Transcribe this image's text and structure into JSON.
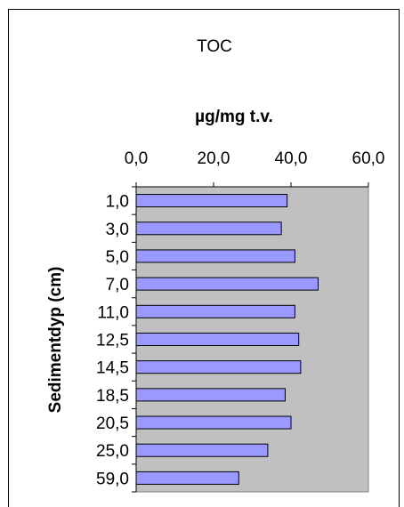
{
  "chart_data": {
    "type": "bar",
    "orientation": "horizontal",
    "title": "TOC",
    "xlabel": "µg/mg t.v.",
    "ylabel": "Sedimentdyp (cm)",
    "xlim": [
      0,
      60
    ],
    "x_ticks": [
      "0,0",
      "20,0",
      "40,0",
      "60,0"
    ],
    "x_axis_position": "top",
    "grid": false,
    "plot_background": "#c0c0c0",
    "bar_color": "#9999ff",
    "categories": [
      "1,0",
      "3,0",
      "5,0",
      "7,0",
      "11,0",
      "12,5",
      "14,5",
      "18,5",
      "20,5",
      "25,0",
      "59,0"
    ],
    "values": [
      39.0,
      37.5,
      41.0,
      47.0,
      41.0,
      42.0,
      42.5,
      38.5,
      40.0,
      34.0,
      26.5
    ]
  }
}
